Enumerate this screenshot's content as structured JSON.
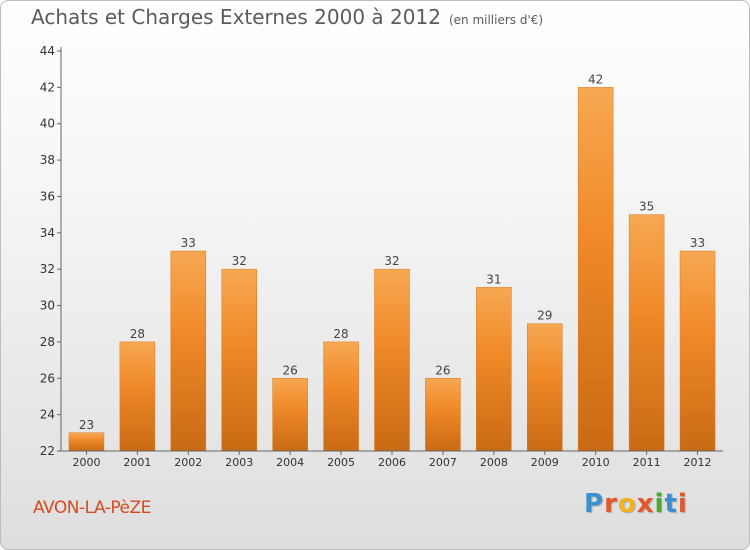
{
  "chart_data": {
    "type": "bar",
    "title": "Achats et Charges Externes 2000 à 2012",
    "unit": "(en milliers d'€)",
    "categories": [
      "2000",
      "2001",
      "2002",
      "2003",
      "2004",
      "2005",
      "2006",
      "2007",
      "2008",
      "2009",
      "2010",
      "2011",
      "2012"
    ],
    "values": [
      23,
      28,
      33,
      32,
      26,
      28,
      32,
      26,
      31,
      29,
      42,
      35,
      33
    ],
    "ylim": [
      22,
      44
    ],
    "yticks": [
      22,
      24,
      26,
      28,
      30,
      32,
      34,
      36,
      38,
      40,
      42,
      44
    ],
    "grid": false,
    "bar_color": "#f08a2a",
    "bar_color_light": "#f7a852",
    "bar_color_dark": "#c96a14"
  },
  "location": "AVON-LA-PèZE",
  "logo": {
    "text": "Proxiti",
    "letter_colors": [
      "#3a8fd0",
      "#e2582a",
      "#f2b21c",
      "#e2582a",
      "#4aa832",
      "#3a8fd0",
      "#e2582a"
    ]
  }
}
